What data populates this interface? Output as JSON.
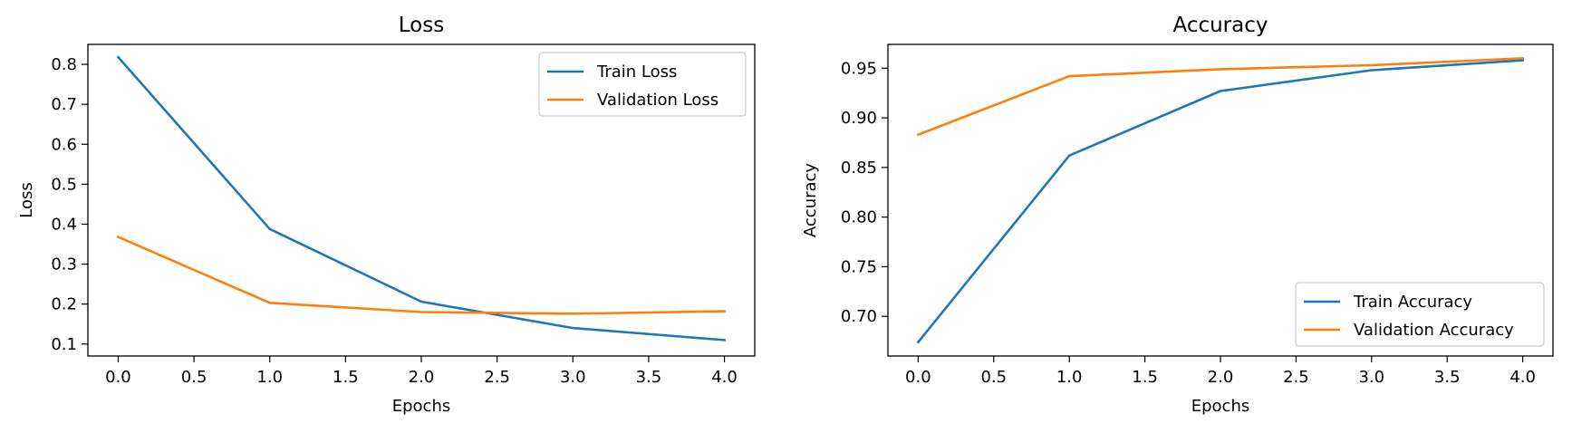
{
  "chart_data": [
    {
      "type": "line",
      "title": "Loss",
      "xlabel": "Epochs",
      "ylabel": "Loss",
      "xlim": [
        -0.2,
        4.2
      ],
      "ylim": [
        0.07,
        0.85
      ],
      "xticks": [
        "0.0",
        "0.5",
        "1.0",
        "1.5",
        "2.0",
        "2.5",
        "3.0",
        "3.5",
        "4.0"
      ],
      "yticks": [
        "0.1",
        "0.2",
        "0.3",
        "0.4",
        "0.5",
        "0.6",
        "0.7",
        "0.8"
      ],
      "x": [
        0,
        1,
        2,
        3,
        4
      ],
      "series": [
        {
          "name": "Train Loss",
          "color": "#1f77b4",
          "values": [
            0.818,
            0.388,
            0.206,
            0.14,
            0.11
          ]
        },
        {
          "name": "Validation Loss",
          "color": "#ff7f0e",
          "values": [
            0.368,
            0.203,
            0.18,
            0.176,
            0.182
          ]
        }
      ],
      "legend": "top-right",
      "grid": false
    },
    {
      "type": "line",
      "title": "Accuracy",
      "xlabel": "Epochs",
      "ylabel": "Accuracy",
      "xlim": [
        -0.2,
        4.2
      ],
      "ylim": [
        0.66,
        0.974
      ],
      "xticks": [
        "0.0",
        "0.5",
        "1.0",
        "1.5",
        "2.0",
        "2.5",
        "3.0",
        "3.5",
        "4.0"
      ],
      "yticks": [
        "0.70",
        "0.75",
        "0.80",
        "0.85",
        "0.90",
        "0.95"
      ],
      "x": [
        0,
        1,
        2,
        3,
        4
      ],
      "series": [
        {
          "name": "Train Accuracy",
          "color": "#1f77b4",
          "values": [
            0.674,
            0.862,
            0.927,
            0.948,
            0.958
          ]
        },
        {
          "name": "Validation Accuracy",
          "color": "#ff7f0e",
          "values": [
            0.883,
            0.942,
            0.949,
            0.953,
            0.96
          ]
        }
      ],
      "legend": "bottom-right",
      "grid": false
    }
  ]
}
